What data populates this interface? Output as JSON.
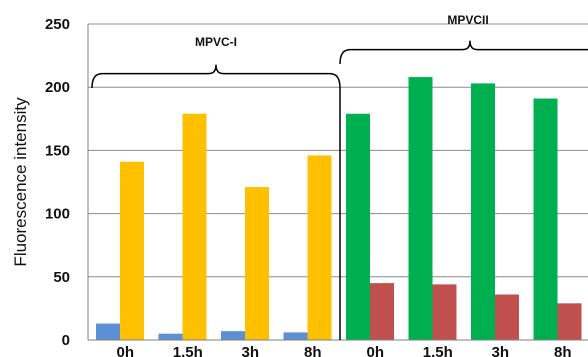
{
  "chart_data": {
    "type": "bar",
    "title": "",
    "xlabel": "",
    "ylabel": "Fluorescence intensity",
    "ylim": [
      0,
      250
    ],
    "yticks": [
      "0",
      "50",
      "100",
      "150",
      "200",
      "250"
    ],
    "grid": true,
    "legend": "none",
    "categories": [
      "0h",
      "1.5h",
      "3h",
      "8h",
      "0h",
      "1.5h",
      "3h",
      "8h"
    ],
    "groups": [
      {
        "label": "MPVC-I",
        "categories": [
          0,
          1,
          2,
          3
        ]
      },
      {
        "label": "MPVCII",
        "categories": [
          4,
          5,
          6,
          7
        ]
      }
    ],
    "series": [
      {
        "color": "#5b8fd6",
        "values": [
          13,
          5,
          7,
          6,
          null,
          null,
          null,
          null
        ]
      },
      {
        "color": "#ffc000",
        "values": [
          141,
          179,
          121,
          146,
          null,
          null,
          null,
          null
        ]
      },
      {
        "color": "#00b050",
        "values": [
          null,
          null,
          null,
          null,
          179,
          208,
          203,
          191
        ]
      },
      {
        "color": "#c0504d",
        "values": [
          null,
          null,
          null,
          null,
          45,
          44,
          36,
          29
        ]
      }
    ]
  }
}
